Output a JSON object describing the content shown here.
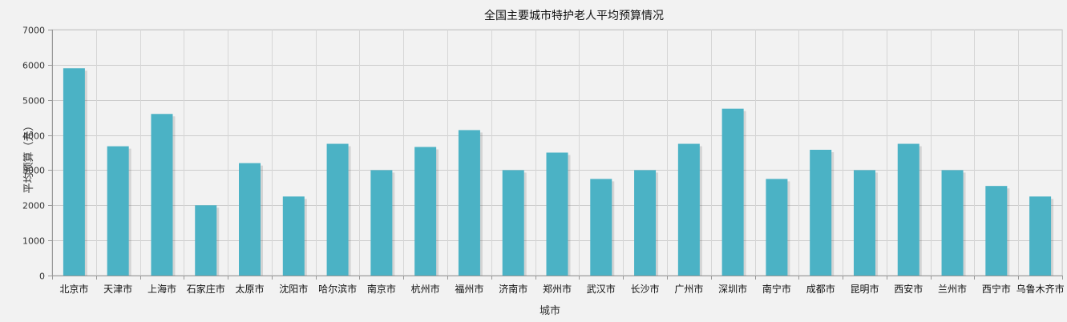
{
  "chart_data": {
    "type": "bar",
    "title": "全国主要城市特护老人平均预算情况",
    "xlabel": "城市",
    "ylabel": "平均预算（元）",
    "ylim": [
      0,
      7000
    ],
    "yticks": [
      0,
      1000,
      2000,
      3000,
      4000,
      5000,
      6000,
      7000
    ],
    "grid": true,
    "bar_color": "#4bb2c5",
    "categories": [
      "北京市",
      "天津市",
      "上海市",
      "石家庄市",
      "太原市",
      "沈阳市",
      "哈尔滨市",
      "南京市",
      "杭州市",
      "福州市",
      "济南市",
      "郑州市",
      "武汉市",
      "长沙市",
      "广州市",
      "深圳市",
      "南宁市",
      "成都市",
      "昆明市",
      "西安市",
      "兰州市",
      "西宁市",
      "乌鲁木齐市"
    ],
    "values": [
      5900,
      3680,
      4600,
      2000,
      3200,
      2250,
      3750,
      3000,
      3660,
      4140,
      3000,
      3500,
      2750,
      3000,
      3750,
      4750,
      2750,
      3580,
      3000,
      3750,
      3000,
      2550,
      2250
    ]
  }
}
